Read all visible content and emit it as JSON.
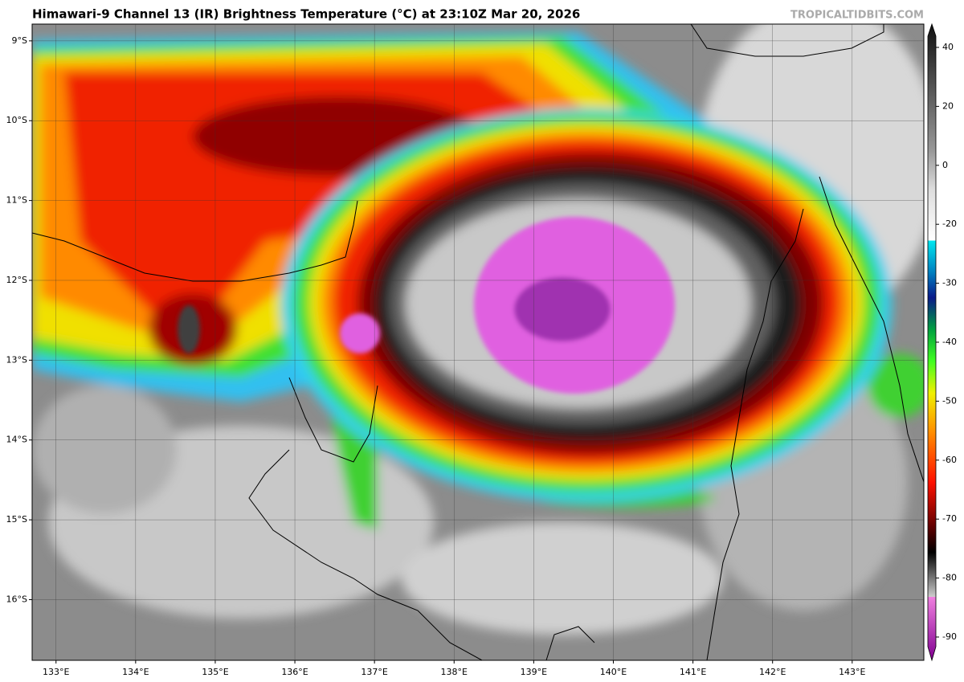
{
  "header": {
    "title": "Himawari-9 Channel 13 (IR) Brightness Temperature (°C) at 23:10Z Mar 20, 2026",
    "credit": "TROPICALTIDBITS.COM"
  },
  "map": {
    "xlim": [
      132.7,
      143.9
    ],
    "ylim": [
      -16.76,
      -8.79
    ],
    "xticks": [
      {
        "value": 133,
        "label": "133°E"
      },
      {
        "value": 134,
        "label": "134°E"
      },
      {
        "value": 135,
        "label": "135°E"
      },
      {
        "value": 136,
        "label": "136°E"
      },
      {
        "value": 137,
        "label": "137°E"
      },
      {
        "value": 138,
        "label": "138°E"
      },
      {
        "value": 139,
        "label": "139°E"
      },
      {
        "value": 140,
        "label": "140°E"
      },
      {
        "value": 141,
        "label": "141°E"
      },
      {
        "value": 142,
        "label": "142°E"
      },
      {
        "value": 143,
        "label": "143°E"
      }
    ],
    "yticks": [
      {
        "value": -9,
        "label": "9°S"
      },
      {
        "value": -10,
        "label": "10°S"
      },
      {
        "value": -11,
        "label": "11°S"
      },
      {
        "value": -12,
        "label": "12°S"
      },
      {
        "value": -13,
        "label": "13°S"
      },
      {
        "value": -14,
        "label": "14°S"
      },
      {
        "value": -15,
        "label": "15°S"
      },
      {
        "value": -16,
        "label": "16°S"
      }
    ]
  },
  "colorbar": {
    "ticks": [
      40,
      20,
      0,
      -20,
      -30,
      -40,
      -50,
      -60,
      -70,
      -80,
      -90
    ]
  }
}
